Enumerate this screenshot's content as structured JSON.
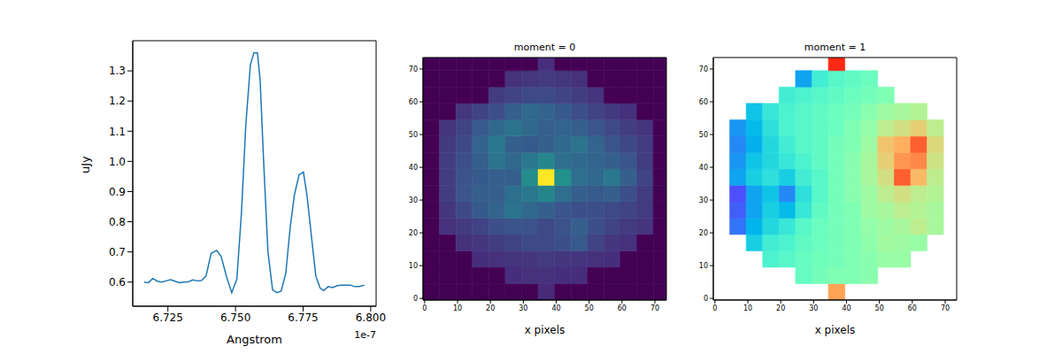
{
  "chart_data": [
    {
      "type": "line",
      "x_label": "Angstrom",
      "y_label": "uJy",
      "annotations": [
        {
          "text": "1e-7"
        }
      ],
      "color": "#1f77b4",
      "x": [
        6.7162e-07,
        6.7178e-07,
        6.7194e-07,
        6.7211e-07,
        6.7227e-07,
        6.7243e-07,
        6.726e-07,
        6.7276e-07,
        6.7293e-07,
        6.7309e-07,
        6.7325e-07,
        6.7342e-07,
        6.7358e-07,
        6.7374e-07,
        6.7391e-07,
        6.741e-07,
        6.743e-07,
        6.7447e-07,
        6.7466e-07,
        6.7486e-07,
        6.7505e-07,
        6.7522e-07,
        6.7538e-07,
        6.7555e-07,
        6.7568e-07,
        6.7581e-07,
        6.7591e-07,
        6.7604e-07,
        6.762e-07,
        6.7637e-07,
        6.7653e-07,
        6.7669e-07,
        6.7686e-07,
        6.7702e-07,
        6.7718e-07,
        6.7735e-07,
        6.7751e-07,
        6.7764e-07,
        6.7781e-07,
        6.7797e-07,
        6.7813e-07,
        6.7826e-07,
        6.7843e-07,
        6.7859e-07,
        6.7876e-07,
        6.7892e-07,
        6.7908e-07,
        6.7925e-07,
        6.7941e-07,
        6.7958e-07,
        6.7977e-07
      ],
      "values": [
        0.6,
        0.598,
        0.612,
        0.603,
        0.6,
        0.604,
        0.608,
        0.603,
        0.598,
        0.6,
        0.601,
        0.607,
        0.604,
        0.605,
        0.62,
        0.695,
        0.705,
        0.685,
        0.62,
        0.565,
        0.61,
        0.83,
        1.12,
        1.32,
        1.36,
        1.36,
        1.27,
        1.0,
        0.7,
        0.575,
        0.565,
        0.57,
        0.63,
        0.78,
        0.89,
        0.955,
        0.965,
        0.89,
        0.75,
        0.62,
        0.58,
        0.572,
        0.585,
        0.582,
        0.588,
        0.59,
        0.59,
        0.59,
        0.585,
        0.585,
        0.59
      ],
      "xlim": [
        6.712e-07,
        6.802e-07
      ],
      "xticks": [
        {
          "value": 6.725e-07,
          "label": "6.725"
        },
        {
          "value": 6.75e-07,
          "label": "6.750"
        },
        {
          "value": 6.775e-07,
          "label": "6.775"
        },
        {
          "value": 6.8e-07,
          "label": "6.800"
        }
      ],
      "ylim": [
        0.52,
        1.4
      ],
      "yticks": [
        0.6,
        0.7,
        0.8,
        0.9,
        {
          "value": 1,
          "label": "1.0"
        },
        1.1,
        1.2,
        1.3
      ]
    },
    {
      "type": "heatmap",
      "title": "moment = 0",
      "x_label": "x pixels",
      "color": "viridis",
      "color_range": [
        0,
        1
      ],
      "xlim": [
        -0.5,
        73.5
      ],
      "ylim": [
        -0.5,
        73.5
      ],
      "xticks": [
        0,
        10,
        20,
        30,
        40,
        50,
        60,
        70
      ],
      "yticks": [
        0,
        10,
        20,
        30,
        40,
        50,
        60,
        70
      ],
      "x_edges": [
        -0.5,
        4.5,
        9.5,
        14.5,
        19.5,
        24.5,
        29.5,
        34.5,
        39.5,
        44.5,
        49.5,
        54.5,
        59.5,
        64.5,
        69.5,
        73.5
      ],
      "y_edges": [
        -0.5,
        4.5,
        9.5,
        14.5,
        19.5,
        24.5,
        29.5,
        34.5,
        39.5,
        44.5,
        49.5,
        54.5,
        59.5,
        64.5,
        69.5,
        73.5
      ],
      "cells": [
        [
          0,
          0,
          0,
          0,
          0,
          0,
          0,
          0.12,
          0,
          0,
          0,
          0,
          0,
          0,
          0
        ],
        [
          0,
          0,
          0,
          0,
          0,
          0.13,
          0.14,
          0.14,
          0.13,
          0.13,
          0,
          0,
          0,
          0,
          0
        ],
        [
          0,
          0,
          0,
          0.13,
          0.14,
          0.15,
          0.16,
          0.17,
          0.16,
          0.15,
          0.14,
          0.13,
          0,
          0,
          0
        ],
        [
          0,
          0,
          0.14,
          0.16,
          0.18,
          0.2,
          0.22,
          0.22,
          0.24,
          0.28,
          0.2,
          0.16,
          0.14,
          0,
          0
        ],
        [
          0,
          0.14,
          0.17,
          0.2,
          0.24,
          0.26,
          0.25,
          0.22,
          0.25,
          0.3,
          0.24,
          0.2,
          0.17,
          0.15,
          0
        ],
        [
          0,
          0.16,
          0.22,
          0.28,
          0.32,
          0.38,
          0.34,
          0.3,
          0.26,
          0.24,
          0.24,
          0.22,
          0.2,
          0.17,
          0
        ],
        [
          0,
          0.18,
          0.26,
          0.3,
          0.3,
          0.36,
          0.4,
          0.45,
          0.36,
          0.3,
          0.28,
          0.3,
          0.24,
          0.18,
          0
        ],
        [
          0,
          0.18,
          0.25,
          0.28,
          0.3,
          0.3,
          0.48,
          1,
          0.5,
          0.36,
          0.34,
          0.4,
          0.3,
          0.2,
          0
        ],
        [
          0,
          0.18,
          0.24,
          0.3,
          0.38,
          0.34,
          0.4,
          0.46,
          0.36,
          0.34,
          0.32,
          0.3,
          0.26,
          0.18,
          0
        ],
        [
          0,
          0.17,
          0.22,
          0.32,
          0.4,
          0.3,
          0.28,
          0.3,
          0.34,
          0.38,
          0.32,
          0.26,
          0.22,
          0.17,
          0
        ],
        [
          0,
          0.15,
          0.2,
          0.28,
          0.34,
          0.38,
          0.34,
          0.3,
          0.32,
          0.3,
          0.26,
          0.22,
          0.18,
          0.15,
          0
        ],
        [
          0,
          0,
          0.16,
          0.2,
          0.24,
          0.3,
          0.34,
          0.32,
          0.28,
          0.24,
          0.2,
          0.17,
          0.14,
          0,
          0
        ],
        [
          0,
          0,
          0,
          0,
          0.17,
          0.2,
          0.22,
          0.22,
          0.2,
          0.18,
          0.15,
          0,
          0,
          0,
          0
        ],
        [
          0,
          0,
          0,
          0,
          0,
          0.14,
          0.16,
          0.17,
          0.16,
          0.14,
          0,
          0,
          0,
          0,
          0
        ],
        [
          0,
          0,
          0,
          0,
          0,
          0,
          0,
          0.13,
          0,
          0,
          0,
          0,
          0,
          0,
          0
        ]
      ]
    },
    {
      "type": "heatmap",
      "title": "moment = 1",
      "x_label": "x pixels",
      "color": "rainbow",
      "color_range": [
        0,
        1
      ],
      "xlim": [
        -0.5,
        73.5
      ],
      "ylim": [
        -0.5,
        73.5
      ],
      "xticks": [
        0,
        10,
        20,
        30,
        40,
        50,
        60,
        70
      ],
      "yticks": [
        0,
        10,
        20,
        30,
        40,
        50,
        60,
        70
      ],
      "x_edges": [
        -0.5,
        4.5,
        9.5,
        14.5,
        19.5,
        24.5,
        29.5,
        34.5,
        39.5,
        44.5,
        49.5,
        54.5,
        59.5,
        64.5,
        69.5,
        73.5
      ],
      "y_edges": [
        -0.5,
        4.5,
        9.5,
        14.5,
        19.5,
        24.5,
        29.5,
        34.5,
        39.5,
        44.5,
        49.5,
        54.5,
        59.5,
        64.5,
        69.5,
        73.5
      ],
      "cells": [
        [
          null,
          null,
          null,
          null,
          null,
          null,
          null,
          0.78,
          null,
          null,
          null,
          null,
          null,
          null,
          null
        ],
        [
          null,
          null,
          null,
          null,
          null,
          0.45,
          0.48,
          0.5,
          0.5,
          0.52,
          null,
          null,
          null,
          null,
          null
        ],
        [
          null,
          null,
          null,
          0.4,
          0.42,
          0.45,
          0.47,
          0.48,
          0.5,
          0.52,
          0.55,
          0.55,
          null,
          null,
          null
        ],
        [
          null,
          null,
          0.3,
          0.38,
          0.4,
          0.44,
          0.46,
          0.48,
          0.5,
          0.53,
          0.57,
          0.56,
          0.55,
          null,
          null
        ],
        [
          null,
          0.15,
          0.25,
          0.32,
          0.36,
          0.42,
          0.46,
          0.48,
          0.5,
          0.54,
          0.56,
          0.58,
          0.62,
          0.58,
          null
        ],
        [
          null,
          0.12,
          0.22,
          0.3,
          0.26,
          0.36,
          0.44,
          0.48,
          0.5,
          0.56,
          0.58,
          0.62,
          0.6,
          0.58,
          null
        ],
        [
          null,
          0.1,
          0.22,
          0.28,
          0.18,
          0.34,
          0.42,
          0.48,
          0.52,
          0.56,
          0.62,
          0.66,
          0.62,
          0.6,
          null
        ],
        [
          null,
          0.22,
          0.3,
          0.34,
          0.3,
          0.38,
          0.42,
          0.48,
          0.52,
          0.58,
          0.66,
          0.88,
          0.74,
          0.62,
          null
        ],
        [
          null,
          0.2,
          0.28,
          0.32,
          0.36,
          0.4,
          0.44,
          0.48,
          0.52,
          0.58,
          0.7,
          0.8,
          0.82,
          0.65,
          null
        ],
        [
          null,
          0.18,
          0.24,
          0.32,
          0.38,
          0.42,
          0.44,
          0.48,
          0.5,
          0.56,
          0.72,
          0.76,
          0.88,
          0.68,
          null
        ],
        [
          null,
          0.2,
          0.26,
          0.34,
          0.4,
          0.42,
          0.44,
          0.46,
          0.5,
          0.54,
          0.62,
          0.66,
          0.7,
          0.62,
          null
        ],
        [
          null,
          null,
          0.28,
          0.36,
          0.4,
          0.42,
          0.44,
          0.46,
          0.48,
          0.52,
          0.56,
          0.58,
          0.6,
          null,
          null
        ],
        [
          null,
          null,
          null,
          null,
          0.38,
          0.4,
          0.42,
          0.44,
          0.46,
          0.48,
          0.5,
          null,
          null,
          null,
          null
        ],
        [
          null,
          null,
          null,
          null,
          null,
          0.22,
          0.38,
          0.42,
          0.44,
          0.46,
          null,
          null,
          null,
          null,
          null
        ],
        [
          null,
          null,
          null,
          null,
          null,
          null,
          null,
          0.95,
          null,
          null,
          null,
          null,
          null,
          null,
          null
        ]
      ]
    }
  ]
}
